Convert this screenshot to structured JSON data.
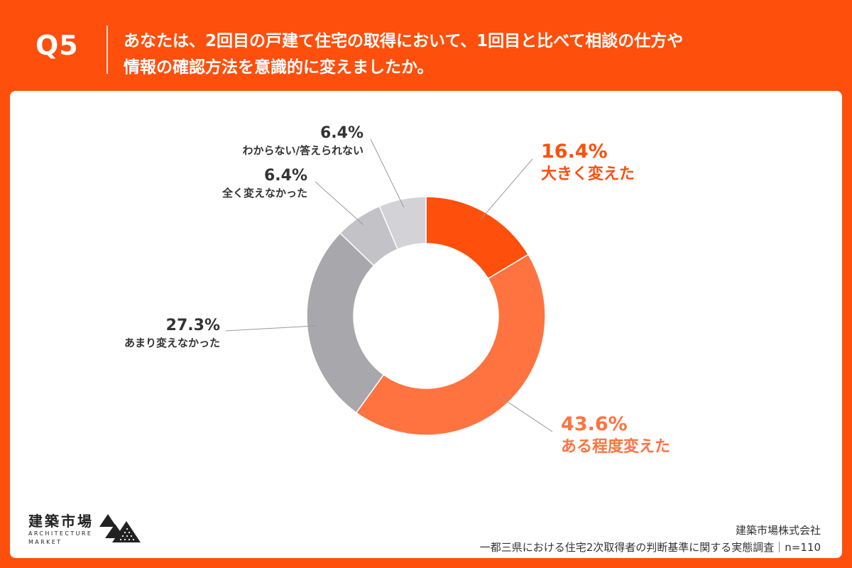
{
  "header": {
    "question_no": "Q5",
    "question_line1": "あなたは、2回目の戸建て住宅の取得において、1回目と比べて相談の仕方や",
    "question_line2": "情報の確認方法を意識的に変えましたか。"
  },
  "chart_data": {
    "type": "pie",
    "variant": "donut",
    "slices": [
      {
        "label": "大きく変えた",
        "value": 16.4,
        "value_text": "16.4%",
        "color": "#fe4f0c",
        "label_color": "#fe4f0c"
      },
      {
        "label": "ある程度変えた",
        "value": 43.6,
        "value_text": "43.6%",
        "color": "#fe7340",
        "label_color": "#fe7340"
      },
      {
        "label": "あまり変えなかった",
        "value": 27.3,
        "value_text": "27.3%",
        "color": "#a8a7ac",
        "label_color": "#333333"
      },
      {
        "label": "全く変えなかった",
        "value": 6.4,
        "value_text": "6.4%",
        "color": "#c3c2c6",
        "label_color": "#333333"
      },
      {
        "label": "わからない/答えられない",
        "value": 6.4,
        "value_text": "6.4%",
        "color": "#d3d2d6",
        "label_color": "#333333"
      }
    ]
  },
  "footer": {
    "company": "建築市場株式会社",
    "survey": "一都三県における住宅2次取得者の判断基準に関する実態調査｜n=110"
  },
  "logo": {
    "name_jp": "建築市場",
    "name_en_line1": "ARCHITECTURE",
    "name_en_line2": "MARKET"
  },
  "colors": {
    "brand_orange": "#fe4f0c",
    "background_panel": "#ffffff",
    "text_dark": "#333333"
  }
}
